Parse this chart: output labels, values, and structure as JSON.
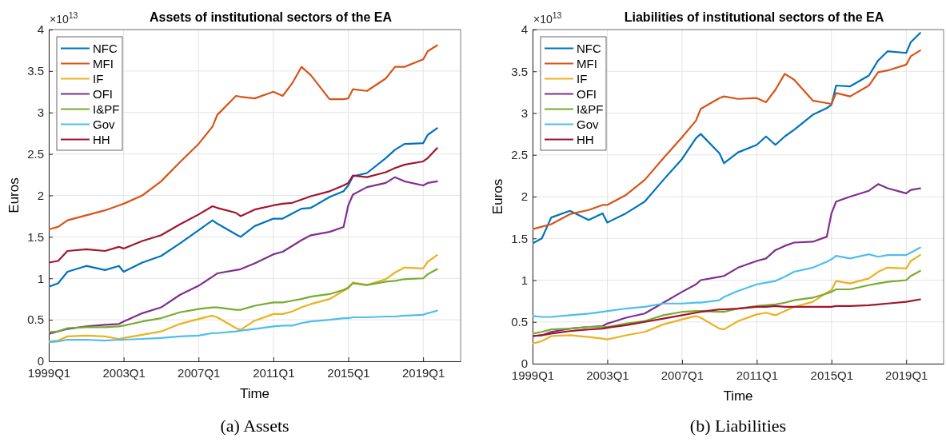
{
  "chart_data": [
    {
      "type": "line",
      "title": "Assets of institutional sectors of the EA",
      "xlabel": "Time",
      "ylabel": "Euros",
      "annotations": [
        "×10$^{13}$",
        "(a) Assets"
      ],
      "x": [
        "1999-01",
        "1999-07",
        "2000-01",
        "2001-01",
        "2002-01",
        "2002-10",
        "2003-01",
        "2004-01",
        "2005-01",
        "2006-01",
        "2007-01",
        "2007-10",
        "2008-01",
        "2009-01",
        "2009-04",
        "2010-01",
        "2011-01",
        "2011-07",
        "2012-01",
        "2012-07",
        "2013-01",
        "2014-01",
        "2014-10",
        "2015-01",
        "2015-04",
        "2016-01",
        "2017-01",
        "2017-07",
        "2018-01",
        "2019-01",
        "2019-04",
        "2019-10"
      ],
      "xlim": [
        "1999-01",
        "2021-01"
      ],
      "xticks": [
        {
          "value": "1999-01",
          "label": "1999Q1"
        },
        {
          "value": "2003-01",
          "label": "2003Q1"
        },
        {
          "value": "2007-01",
          "label": "2007Q1"
        },
        {
          "value": "2011-01",
          "label": "2011Q1"
        },
        {
          "value": "2015-01",
          "label": "2015Q1"
        },
        {
          "value": "2019-01",
          "label": "2019Q1"
        }
      ],
      "ylim": [
        0,
        4
      ],
      "yticks": [
        0,
        0.5,
        1,
        1.5,
        2,
        2.5,
        3,
        3.5,
        4
      ],
      "grid": true,
      "legend": "top left",
      "series": [
        {
          "name": "NFC",
          "color": "#0072bd",
          "values": [
            0.9,
            0.94,
            1.08,
            1.15,
            1.1,
            1.15,
            1.08,
            1.19,
            1.27,
            1.42,
            1.58,
            1.7,
            1.66,
            1.53,
            1.5,
            1.63,
            1.72,
            1.72,
            1.78,
            1.84,
            1.85,
            1.98,
            2.05,
            2.12,
            2.23,
            2.27,
            2.45,
            2.55,
            2.62,
            2.63,
            2.73,
            2.81
          ]
        },
        {
          "name": "MFI",
          "color": "#d95319",
          "values": [
            1.59,
            1.62,
            1.7,
            1.76,
            1.82,
            1.88,
            1.9,
            2.0,
            2.17,
            2.4,
            2.62,
            2.83,
            2.97,
            3.2,
            3.19,
            3.17,
            3.25,
            3.2,
            3.35,
            3.55,
            3.45,
            3.16,
            3.16,
            3.17,
            3.28,
            3.26,
            3.41,
            3.55,
            3.55,
            3.64,
            3.74,
            3.81
          ]
        },
        {
          "name": "IF",
          "color": "#edb120",
          "values": [
            0.24,
            0.25,
            0.3,
            0.31,
            0.3,
            0.27,
            0.28,
            0.32,
            0.36,
            0.45,
            0.51,
            0.55,
            0.53,
            0.4,
            0.38,
            0.49,
            0.57,
            0.57,
            0.6,
            0.65,
            0.69,
            0.75,
            0.85,
            0.88,
            0.95,
            0.92,
            0.99,
            1.07,
            1.13,
            1.12,
            1.2,
            1.28
          ]
        },
        {
          "name": "OFI",
          "color": "#7e2f8e",
          "values": [
            0.33,
            0.36,
            0.39,
            0.42,
            0.44,
            0.45,
            0.48,
            0.58,
            0.65,
            0.8,
            0.91,
            1.02,
            1.06,
            1.1,
            1.11,
            1.18,
            1.29,
            1.32,
            1.39,
            1.46,
            1.52,
            1.56,
            1.62,
            1.88,
            2.01,
            2.1,
            2.15,
            2.22,
            2.17,
            2.12,
            2.15,
            2.17
          ]
        },
        {
          "name": "I&PF",
          "color": "#77ac30",
          "values": [
            0.35,
            0.36,
            0.4,
            0.41,
            0.41,
            0.42,
            0.43,
            0.48,
            0.52,
            0.59,
            0.63,
            0.65,
            0.65,
            0.62,
            0.62,
            0.67,
            0.71,
            0.71,
            0.73,
            0.75,
            0.78,
            0.81,
            0.86,
            0.89,
            0.94,
            0.92,
            0.96,
            0.97,
            0.99,
            1.0,
            1.05,
            1.11
          ]
        },
        {
          "name": "Gov",
          "color": "#4dbeee",
          "values": [
            0.23,
            0.24,
            0.26,
            0.26,
            0.25,
            0.26,
            0.26,
            0.27,
            0.28,
            0.3,
            0.31,
            0.34,
            0.34,
            0.36,
            0.37,
            0.39,
            0.42,
            0.43,
            0.43,
            0.46,
            0.48,
            0.5,
            0.52,
            0.52,
            0.53,
            0.53,
            0.54,
            0.54,
            0.55,
            0.56,
            0.58,
            0.61
          ]
        },
        {
          "name": "HH",
          "color": "#a2142f",
          "values": [
            1.19,
            1.21,
            1.33,
            1.35,
            1.33,
            1.38,
            1.36,
            1.45,
            1.52,
            1.65,
            1.77,
            1.87,
            1.85,
            1.79,
            1.75,
            1.83,
            1.88,
            1.9,
            1.91,
            1.95,
            1.99,
            2.05,
            2.12,
            2.15,
            2.24,
            2.22,
            2.28,
            2.33,
            2.37,
            2.41,
            2.45,
            2.57
          ]
        }
      ]
    },
    {
      "type": "line",
      "title": "Liabilities of institutional sectors of the EA",
      "xlabel": "Time",
      "ylabel": "Euros",
      "annotations": [
        "×10$^{13}$",
        "(b) Liabilities"
      ],
      "x": [
        "1999-01",
        "1999-07",
        "2000-01",
        "2001-01",
        "2002-01",
        "2002-10",
        "2003-01",
        "2004-01",
        "2005-01",
        "2006-01",
        "2007-01",
        "2007-10",
        "2008-01",
        "2009-01",
        "2009-04",
        "2010-01",
        "2011-01",
        "2011-07",
        "2012-01",
        "2012-07",
        "2013-01",
        "2014-01",
        "2014-10",
        "2015-01",
        "2015-04",
        "2016-01",
        "2017-01",
        "2017-07",
        "2018-01",
        "2019-01",
        "2019-04",
        "2019-10"
      ],
      "xlim": [
        "1999-01",
        "2021-01"
      ],
      "xticks": [
        {
          "value": "1999-01",
          "label": "1999Q1"
        },
        {
          "value": "2003-01",
          "label": "2003Q1"
        },
        {
          "value": "2007-01",
          "label": "2007Q1"
        },
        {
          "value": "2011-01",
          "label": "2011Q1"
        },
        {
          "value": "2015-01",
          "label": "2015Q1"
        },
        {
          "value": "2019-01",
          "label": "2019Q1"
        }
      ],
      "ylim": [
        0,
        4
      ],
      "yticks": [
        0,
        0.5,
        1,
        1.5,
        2,
        2.5,
        3,
        3.5,
        4
      ],
      "grid": true,
      "legend": "top left",
      "series": [
        {
          "name": "NFC",
          "color": "#0072bd",
          "values": [
            1.44,
            1.5,
            1.75,
            1.83,
            1.72,
            1.8,
            1.69,
            1.8,
            1.94,
            2.2,
            2.45,
            2.7,
            2.75,
            2.52,
            2.4,
            2.53,
            2.62,
            2.72,
            2.62,
            2.72,
            2.8,
            2.98,
            3.06,
            3.1,
            3.33,
            3.32,
            3.45,
            3.63,
            3.74,
            3.72,
            3.85,
            3.96
          ]
        },
        {
          "name": "MFI",
          "color": "#d95319",
          "values": [
            1.61,
            1.64,
            1.67,
            1.79,
            1.84,
            1.9,
            1.9,
            2.02,
            2.2,
            2.46,
            2.71,
            2.91,
            3.05,
            3.18,
            3.2,
            3.17,
            3.18,
            3.13,
            3.28,
            3.47,
            3.4,
            3.15,
            3.12,
            3.11,
            3.24,
            3.2,
            3.33,
            3.49,
            3.51,
            3.58,
            3.68,
            3.75
          ]
        },
        {
          "name": "IF",
          "color": "#edb120",
          "values": [
            0.24,
            0.27,
            0.33,
            0.34,
            0.32,
            0.3,
            0.29,
            0.34,
            0.38,
            0.47,
            0.53,
            0.57,
            0.55,
            0.42,
            0.41,
            0.51,
            0.59,
            0.61,
            0.58,
            0.63,
            0.68,
            0.74,
            0.85,
            0.88,
            0.99,
            0.96,
            1.02,
            1.1,
            1.15,
            1.14,
            1.23,
            1.3
          ]
        },
        {
          "name": "OFI",
          "color": "#7e2f8e",
          "values": [
            0.33,
            0.34,
            0.38,
            0.42,
            0.44,
            0.45,
            0.48,
            0.55,
            0.6,
            0.73,
            0.86,
            0.95,
            1.0,
            1.04,
            1.05,
            1.15,
            1.23,
            1.26,
            1.36,
            1.41,
            1.45,
            1.46,
            1.52,
            1.8,
            1.94,
            2.0,
            2.07,
            2.15,
            2.1,
            2.04,
            2.08,
            2.1
          ]
        },
        {
          "name": "I&PF",
          "color": "#77ac30",
          "values": [
            0.36,
            0.38,
            0.41,
            0.42,
            0.44,
            0.44,
            0.44,
            0.48,
            0.51,
            0.58,
            0.62,
            0.63,
            0.63,
            0.62,
            0.62,
            0.66,
            0.69,
            0.7,
            0.71,
            0.73,
            0.76,
            0.79,
            0.84,
            0.86,
            0.89,
            0.89,
            0.94,
            0.96,
            0.98,
            1.0,
            1.05,
            1.11
          ]
        },
        {
          "name": "Gov",
          "color": "#4dbeee",
          "values": [
            0.57,
            0.56,
            0.56,
            0.58,
            0.6,
            0.62,
            0.63,
            0.66,
            0.68,
            0.72,
            0.72,
            0.73,
            0.73,
            0.76,
            0.8,
            0.87,
            0.95,
            0.97,
            0.99,
            1.04,
            1.1,
            1.15,
            1.22,
            1.25,
            1.29,
            1.26,
            1.31,
            1.28,
            1.3,
            1.3,
            1.33,
            1.39
          ]
        },
        {
          "name": "HH",
          "color": "#a2142f",
          "values": [
            0.33,
            0.34,
            0.36,
            0.39,
            0.41,
            0.42,
            0.43,
            0.46,
            0.5,
            0.54,
            0.58,
            0.61,
            0.62,
            0.65,
            0.65,
            0.66,
            0.68,
            0.68,
            0.69,
            0.68,
            0.68,
            0.68,
            0.68,
            0.68,
            0.69,
            0.69,
            0.7,
            0.71,
            0.72,
            0.74,
            0.75,
            0.77
          ]
        }
      ]
    }
  ]
}
